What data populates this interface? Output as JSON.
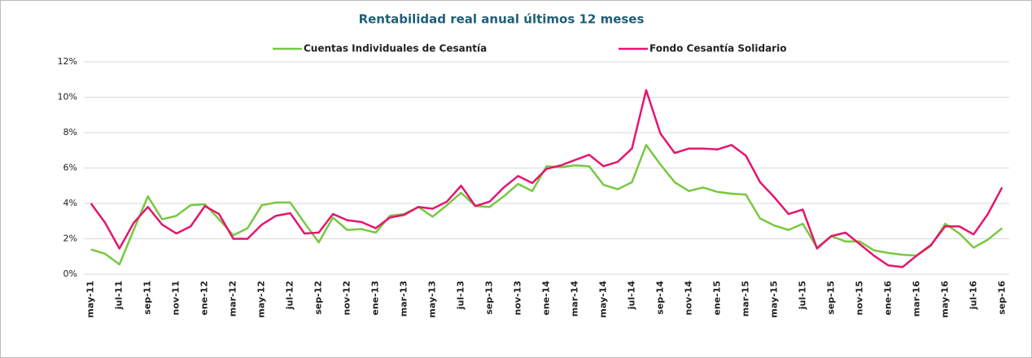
{
  "chart_data": {
    "type": "line",
    "title": "Rentabilidad real anual últimos 12 meses",
    "categories": [
      "may-11",
      null,
      "jul-11",
      null,
      "sep-11",
      null,
      "nov-11",
      null,
      "ene-12",
      null,
      "mar-12",
      null,
      "may-12",
      null,
      "jul-12",
      null,
      "sep-12",
      null,
      "nov-12",
      null,
      "ene-13",
      null,
      "mar-13",
      null,
      "may-13",
      null,
      "jul-13",
      null,
      "sep-13",
      null,
      "nov-13",
      null,
      "ene-14",
      null,
      "mar-14",
      null,
      "may-14",
      null,
      "jul-14",
      null,
      "sep-14",
      null,
      "nov-14",
      null,
      "ene-15",
      null,
      "mar-15",
      null,
      "may-15",
      null,
      "jul-15",
      null,
      "sep-15",
      null,
      "nov-15",
      null,
      "ene-16",
      null,
      "mar-16",
      null,
      "may-16",
      null,
      "jul-16",
      null,
      "sep-16"
    ],
    "series": [
      {
        "name": "Cuentas Individuales de Cesantía",
        "color": "#78c841",
        "values": [
          1.4,
          1.15,
          0.55,
          2.5,
          4.4,
          3.1,
          3.3,
          3.9,
          3.95,
          3.1,
          2.2,
          2.6,
          3.9,
          4.05,
          4.05,
          2.9,
          1.8,
          3.2,
          2.5,
          2.55,
          2.35,
          3.3,
          3.4,
          3.8,
          3.25,
          3.9,
          4.6,
          3.85,
          3.8,
          4.4,
          5.1,
          4.7,
          6.1,
          6.05,
          6.15,
          6.1,
          5.05,
          4.8,
          5.2,
          7.3,
          6.2,
          5.2,
          4.7,
          4.9,
          4.65,
          4.55,
          4.5,
          3.15,
          2.75,
          2.5,
          2.85,
          1.5,
          2.15,
          1.85,
          1.85,
          1.35,
          1.2,
          1.1,
          1.05,
          1.6,
          2.85,
          2.3,
          1.5,
          1.95,
          2.6
        ]
      },
      {
        "name": "Fondo Cesantía Solidario",
        "color": "#e5156f",
        "values": [
          4.0,
          2.9,
          1.45,
          2.9,
          3.8,
          2.8,
          2.3,
          2.7,
          3.85,
          3.4,
          2.0,
          2.0,
          2.8,
          3.3,
          3.45,
          2.3,
          2.35,
          3.4,
          3.05,
          2.95,
          2.6,
          3.2,
          3.35,
          3.8,
          3.7,
          4.1,
          5.0,
          3.85,
          4.1,
          4.9,
          5.55,
          5.15,
          5.95,
          6.15,
          6.45,
          6.75,
          6.1,
          6.35,
          7.1,
          10.4,
          7.95,
          6.85,
          7.1,
          7.1,
          7.05,
          7.3,
          6.7,
          5.2,
          4.35,
          3.4,
          3.65,
          1.45,
          2.15,
          2.35,
          1.7,
          1.05,
          0.5,
          0.4,
          1.05,
          1.65,
          2.7,
          2.7,
          2.25,
          3.4,
          4.9
        ]
      }
    ],
    "ylim": [
      0,
      12
    ],
    "yticks": [
      {
        "value": 0,
        "label": "0%"
      },
      {
        "value": 2,
        "label": "2%"
      },
      {
        "value": 4,
        "label": "4%"
      },
      {
        "value": 6,
        "label": "6%"
      },
      {
        "value": 8,
        "label": "8%"
      },
      {
        "value": 10,
        "label": "10%"
      },
      {
        "value": 12,
        "label": "12%"
      }
    ],
    "grid": true
  }
}
